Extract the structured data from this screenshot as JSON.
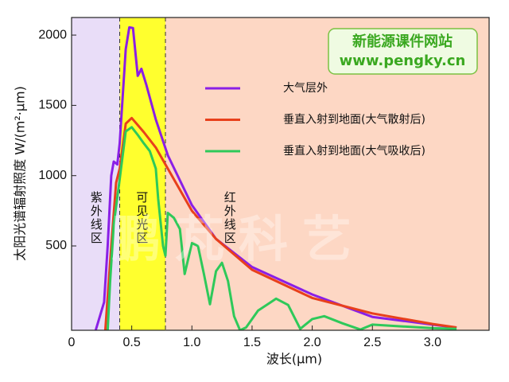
{
  "chart_data": {
    "type": "line",
    "x_label": "波长(μm)",
    "y_label": "太阳光谱辐射照度 W/(m²·μm)",
    "xlim": [
      0,
      3.47
    ],
    "ylim": [
      -100,
      2125
    ],
    "xticks": [
      0,
      0.5,
      {
        "value": 1.0,
        "label": "1.0"
      },
      1.5,
      {
        "value": 2.0,
        "label": "2.0"
      },
      2.5,
      {
        "value": 3.0,
        "label": "3.0"
      }
    ],
    "yticks": [
      500,
      1000,
      1500,
      2000
    ],
    "regions": [
      {
        "range": [
          0,
          0.4
        ],
        "color": "#e9ddf8",
        "label": "紫外线区"
      },
      {
        "range": [
          0.4,
          0.78
        ],
        "color": "#ffff2e",
        "label": "可见光区"
      },
      {
        "range": [
          0.78,
          3.47
        ],
        "color": "#fdd7c4",
        "label": "红外线区"
      }
    ],
    "series": [
      {
        "name": "大气层外",
        "color": "#8a1fe6",
        "x": [
          0.2,
          0.27,
          0.3,
          0.33,
          0.35,
          0.38,
          0.4,
          0.45,
          0.48,
          0.51,
          0.55,
          0.58,
          0.62,
          0.7,
          0.8,
          1.0,
          1.2,
          1.5,
          2.0,
          2.5,
          3.0,
          3.2
        ],
        "values": [
          -100,
          100,
          500,
          1000,
          1100,
          1080,
          1230,
          1900,
          2055,
          2050,
          1710,
          1760,
          1650,
          1400,
          1145,
          790,
          550,
          350,
          155,
          -5,
          -60,
          -82
        ]
      },
      {
        "name": "垂直入射到地面(大气散射后)",
        "color": "#e8401c",
        "x": [
          0.28,
          0.33,
          0.37,
          0.4,
          0.45,
          0.5,
          0.55,
          0.6,
          0.7,
          0.8,
          1.0,
          1.2,
          1.5,
          2.0,
          2.5,
          3.0,
          3.2
        ],
        "values": [
          -100,
          500,
          950,
          1050,
          1370,
          1410,
          1360,
          1310,
          1200,
          1050,
          750,
          550,
          330,
          130,
          20,
          -55,
          -80
        ]
      },
      {
        "name": "垂直入射到地面(大气吸收后)",
        "color": "#2ec95a",
        "x": [
          0.3,
          0.32,
          0.35,
          0.4,
          0.45,
          0.5,
          0.55,
          0.6,
          0.65,
          0.7,
          0.72,
          0.76,
          0.78,
          0.8,
          0.85,
          0.9,
          0.94,
          1.0,
          1.05,
          1.1,
          1.15,
          1.2,
          1.25,
          1.3,
          1.35,
          1.4,
          1.45,
          1.55,
          1.7,
          1.8,
          1.9,
          2.0,
          2.1,
          2.25,
          2.4,
          2.5,
          2.7,
          3.0,
          3.2
        ],
        "values": [
          -100,
          240,
          650,
          975,
          1315,
          1345,
          1290,
          1230,
          1175,
          1050,
          835,
          500,
          430,
          735,
          700,
          620,
          300,
          520,
          500,
          300,
          85,
          320,
          380,
          250,
          0,
          -100,
          -80,
          40,
          125,
          80,
          -90,
          -20,
          0,
          -50,
          -95,
          -60,
          -70,
          -85,
          -90
        ]
      }
    ],
    "legend_position": "upper right",
    "watermark": {
      "title": "新能源课件网站",
      "url": "www.pengky.cn",
      "stamp": "鹏芃科艺"
    }
  }
}
